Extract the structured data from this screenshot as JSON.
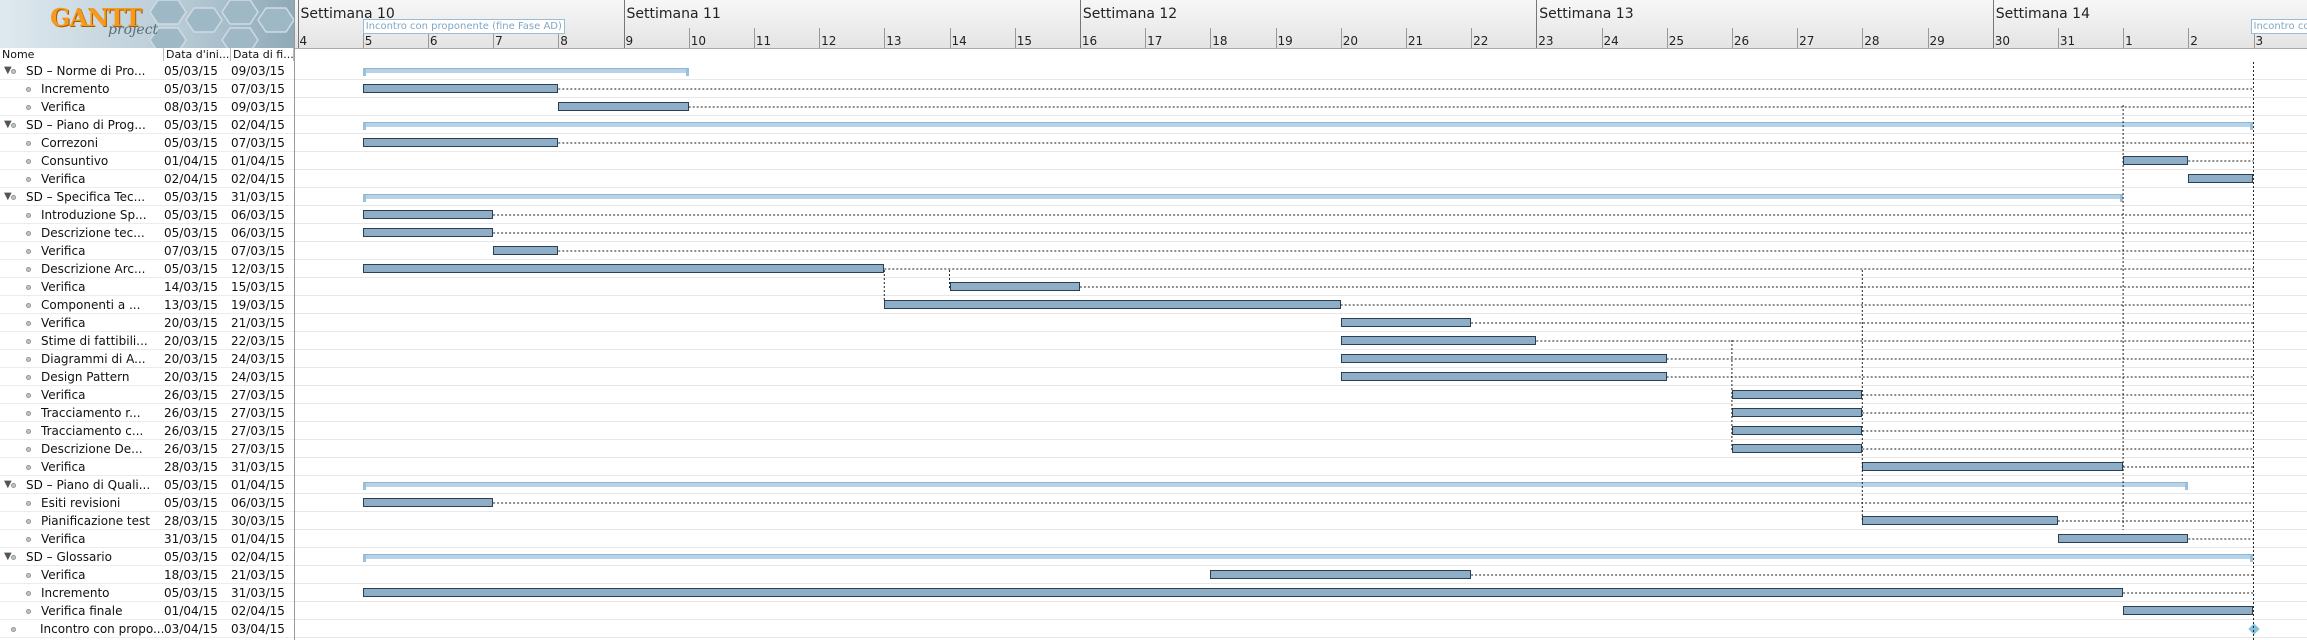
{
  "logo": {
    "brand": "GANTT",
    "sub": "project"
  },
  "columns": {
    "name": "Nome",
    "start": "Data d'ini...",
    "end": "Data di fi..."
  },
  "weeks": [
    "Settimana 10",
    "Settimana 11",
    "Settimana 12",
    "Settimana 13",
    "Settimana 14"
  ],
  "days": [
    "4",
    "5",
    "6",
    "7",
    "8",
    "9",
    "10",
    "11",
    "12",
    "13",
    "14",
    "15",
    "16",
    "17",
    "18",
    "19",
    "20",
    "21",
    "22",
    "23",
    "24",
    "25",
    "26",
    "27",
    "28",
    "29",
    "30",
    "31",
    "1",
    "2",
    "3"
  ],
  "milestone_labels": [
    "Incontro con proponente (fine Fase AD)",
    "Incontro con"
  ],
  "tasks": [
    {
      "name": "SD – Norme di Pro...",
      "start": "05/03/15",
      "end": "09/03/15",
      "group": true
    },
    {
      "name": "Incremento",
      "start": "05/03/15",
      "end": "07/03/15"
    },
    {
      "name": "Verifica",
      "start": "08/03/15",
      "end": "09/03/15"
    },
    {
      "name": "SD – Piano di Prog...",
      "start": "05/03/15",
      "end": "02/04/15",
      "group": true
    },
    {
      "name": "Correzoni",
      "start": "05/03/15",
      "end": "07/03/15"
    },
    {
      "name": "Consuntivo",
      "start": "01/04/15",
      "end": "01/04/15"
    },
    {
      "name": "Verifica",
      "start": "02/04/15",
      "end": "02/04/15"
    },
    {
      "name": "SD – Specifica Tec...",
      "start": "05/03/15",
      "end": "31/03/15",
      "group": true
    },
    {
      "name": "Introduzione Sp...",
      "start": "05/03/15",
      "end": "06/03/15"
    },
    {
      "name": "Descrizione tec...",
      "start": "05/03/15",
      "end": "06/03/15"
    },
    {
      "name": "Verifica",
      "start": "07/03/15",
      "end": "07/03/15"
    },
    {
      "name": "Descrizione Arc...",
      "start": "05/03/15",
      "end": "12/03/15"
    },
    {
      "name": "Verifica",
      "start": "14/03/15",
      "end": "15/03/15"
    },
    {
      "name": "Componenti a ...",
      "start": "13/03/15",
      "end": "19/03/15"
    },
    {
      "name": "Verifica",
      "start": "20/03/15",
      "end": "21/03/15"
    },
    {
      "name": "Stime di fattibili...",
      "start": "20/03/15",
      "end": "22/03/15"
    },
    {
      "name": "Diagrammi di A...",
      "start": "20/03/15",
      "end": "24/03/15"
    },
    {
      "name": "Design Pattern",
      "start": "20/03/15",
      "end": "24/03/15"
    },
    {
      "name": "Verifica",
      "start": "26/03/15",
      "end": "27/03/15"
    },
    {
      "name": "Tracciamento r...",
      "start": "26/03/15",
      "end": "27/03/15"
    },
    {
      "name": "Tracciamento c...",
      "start": "26/03/15",
      "end": "27/03/15"
    },
    {
      "name": "Descrizione De...",
      "start": "26/03/15",
      "end": "27/03/15"
    },
    {
      "name": "Verifica",
      "start": "28/03/15",
      "end": "31/03/15"
    },
    {
      "name": "SD – Piano di Quali...",
      "start": "05/03/15",
      "end": "01/04/15",
      "group": true
    },
    {
      "name": "Esiti revisioni",
      "start": "05/03/15",
      "end": "06/03/15"
    },
    {
      "name": "Pianificazione test",
      "start": "28/03/15",
      "end": "30/03/15"
    },
    {
      "name": "Verifica",
      "start": "31/03/15",
      "end": "01/04/15"
    },
    {
      "name": "SD – Glossario",
      "start": "05/03/15",
      "end": "02/04/15",
      "group": true
    },
    {
      "name": "Verifica",
      "start": "18/03/15",
      "end": "21/03/15"
    },
    {
      "name": "Incremento",
      "start": "05/03/15",
      "end": "31/03/15"
    },
    {
      "name": "Verifica finale",
      "start": "01/04/15",
      "end": "02/04/15"
    },
    {
      "name": "Incontro con propo...",
      "start": "03/04/15",
      "end": "03/04/15",
      "top": true
    }
  ]
}
